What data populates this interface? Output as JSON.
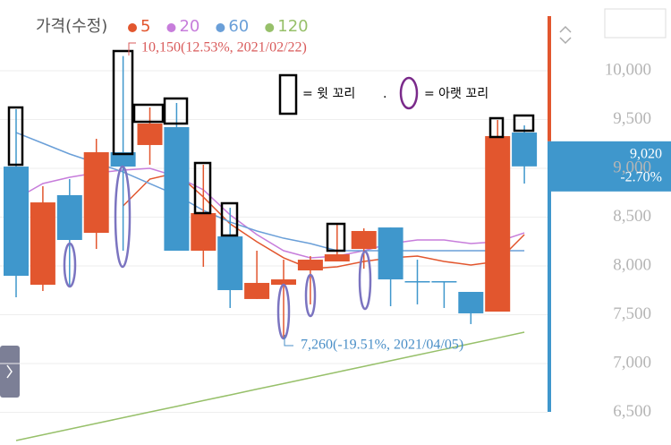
{
  "chart_data": {
    "type": "candlestick",
    "legend_title": "가격(수정)",
    "candles": {
      "up_color": "#e2562e",
      "down_color": "#3f97cc",
      "open": [
        9018,
        7807,
        8725,
        8339,
        9165,
        9239,
        9422,
        8156,
        8303,
        7661,
        7807,
        7954,
        8046,
        8174,
        8394,
        7844,
        7844,
        7734,
        7532,
        9367
      ],
      "high": [
        9606,
        8817,
        8890,
        9303,
        10150,
        9624,
        9670,
        9037,
        8596,
        8156,
        8064,
        8101,
        8431,
        8385,
        8394,
        8064,
        7844,
        7734,
        9495,
        9440
      ],
      "low": [
        7679,
        7743,
        7789,
        8174,
        8156,
        9037,
        8156,
        7991,
        7569,
        7661,
        7260,
        7606,
        8046,
        7972,
        7587,
        7606,
        7569,
        7404,
        7532,
        8844
      ],
      "close": [
        7899,
        8651,
        8266,
        9165,
        9018,
        9459,
        8156,
        8541,
        7752,
        7826,
        7862,
        8064,
        8119,
        8358,
        7862,
        7844,
        7844,
        7514,
        9330,
        9020
      ]
    },
    "series": [
      {
        "name": "5",
        "color": "#e2562e",
        "values": [
          null,
          null,
          null,
          null,
          8615,
          8890,
          8954,
          8706,
          8431,
          8248,
          8083,
          7972,
          7991,
          8046,
          8083,
          8101,
          8046,
          8009,
          8046,
          8321
        ]
      },
      {
        "name": "20",
        "color": "#c77ddb",
        "values": [
          8688,
          8844,
          8908,
          8954,
          8982,
          9000,
          8917,
          8780,
          8523,
          8321,
          8156,
          8083,
          8101,
          8156,
          8229,
          8266,
          8266,
          8229,
          8248,
          8339
        ]
      },
      {
        "name": "60",
        "color": "#6a9fd8",
        "values": [
          9367,
          9257,
          9147,
          9055,
          8963,
          8844,
          8725,
          8569,
          8450,
          8358,
          8284,
          8229,
          8156,
          8156,
          8156,
          8156,
          8156,
          8156,
          8156,
          8156
        ]
      },
      {
        "name": "120",
        "color": "#97c06a",
        "values": [
          6211,
          6269,
          6328,
          6386,
          6445,
          6503,
          6561,
          6620,
          6678,
          6737,
          6795,
          6853,
          6912,
          6970,
          7029,
          7087,
          7145,
          7204,
          7262,
          7321
        ]
      }
    ],
    "ylim": [
      6165,
      10725
    ],
    "yticks": [
      {
        "value": 6500,
        "label": "6,500"
      },
      {
        "value": 7000,
        "label": "7,000"
      },
      {
        "value": 7500,
        "label": "7,500"
      },
      {
        "value": 8000,
        "label": "8,000"
      },
      {
        "value": 8500,
        "label": "8,500"
      },
      {
        "value": 9000,
        "label": "9,000"
      },
      {
        "value": 9500,
        "label": "9,500"
      },
      {
        "value": 10000,
        "label": "10,000"
      }
    ],
    "grid": true,
    "current_price": {
      "value": 9020,
      "label": "9,020",
      "change": "-2.70%"
    },
    "annotations": {
      "high": "10,150(12.53%, 2021/02/22)",
      "low": "7,260(-19.51%, 2021/04/05)",
      "upper_wick": "= 윗 꼬리",
      "separator": ".",
      "lower_wick": "= 아랫 꼬리"
    },
    "period": 20
  }
}
